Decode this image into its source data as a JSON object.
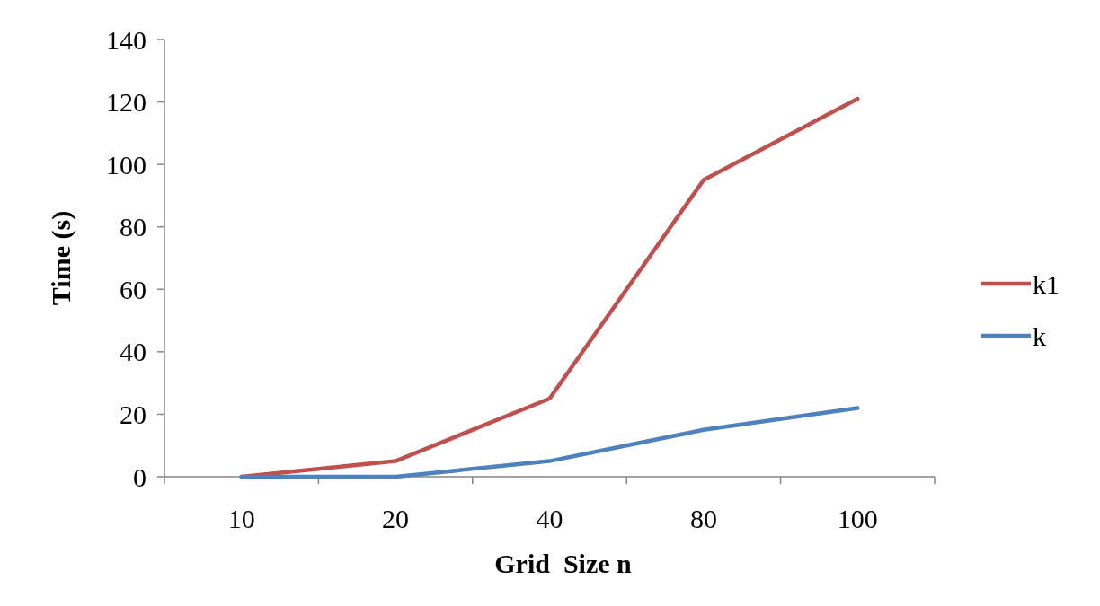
{
  "chart_data": {
    "type": "line",
    "xlabel": "Grid  Size n",
    "ylabel": "Time (s)",
    "categories": [
      "10",
      "20",
      "40",
      "80",
      "100"
    ],
    "series": [
      {
        "name": "k1",
        "color": "#c0504d",
        "values": [
          0,
          5,
          25,
          95,
          121
        ]
      },
      {
        "name": "k",
        "color": "#4f81bd",
        "values": [
          0,
          0,
          5,
          15,
          22
        ]
      }
    ],
    "ylim": [
      0,
      140
    ],
    "yticks": [
      0,
      20,
      40,
      60,
      80,
      100,
      120,
      140
    ],
    "grid": false,
    "legend": "right",
    "marker": "none",
    "line_style": "solid"
  }
}
